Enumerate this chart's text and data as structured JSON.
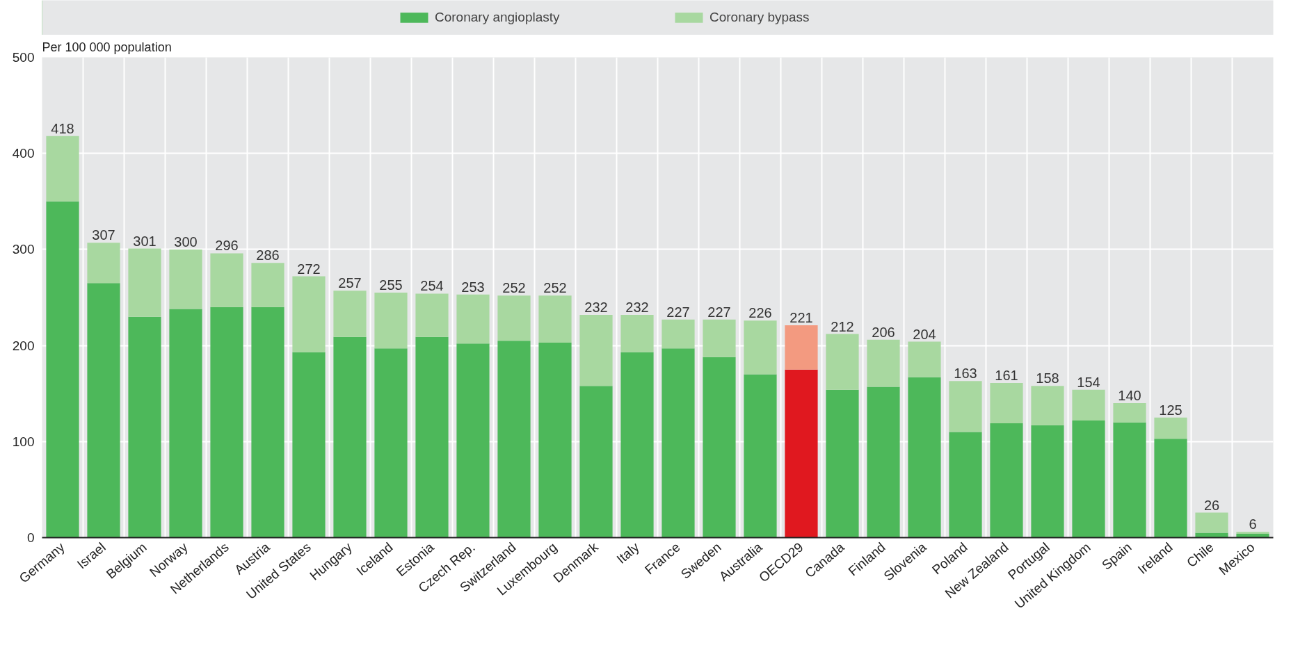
{
  "chart_data": {
    "type": "bar",
    "stacked": true,
    "ylabel": "Per 100 000 population",
    "categories": [
      "Germany",
      "Israel",
      "Belgium",
      "Norway",
      "Netherlands",
      "Austria",
      "United States",
      "Hungary",
      "Iceland",
      "Estonia",
      "Czech Rep.",
      "Switzerland",
      "Luxembourg",
      "Denmark",
      "Italy",
      "France",
      "Sweden",
      "Australia",
      "OECD29",
      "Canada",
      "Finland",
      "Slovenia",
      "Poland",
      "New Zealand",
      "Portugal",
      "United Kingdom",
      "Spain",
      "Ireland",
      "Chile",
      "Mexico"
    ],
    "series": [
      {
        "name": "Coronary angioplasty",
        "color": "#4db85a",
        "colors": [
          "#4db85a",
          "#4db85a",
          "#4db85a",
          "#4db85a",
          "#4db85a",
          "#4db85a",
          "#4db85a",
          "#4db85a",
          "#4db85a",
          "#4db85a",
          "#4db85a",
          "#4db85a",
          "#4db85a",
          "#4db85a",
          "#4db85a",
          "#4db85a",
          "#4db85a",
          "#4db85a",
          "#e0181f",
          "#4db85a",
          "#4db85a",
          "#4db85a",
          "#4db85a",
          "#4db85a",
          "#4db85a",
          "#4db85a",
          "#4db85a",
          "#4db85a",
          "#4db85a",
          "#4db85a"
        ],
        "values": [
          350,
          265,
          230,
          238,
          240,
          240,
          193,
          209,
          197,
          209,
          202,
          205,
          203,
          158,
          193,
          197,
          188,
          170,
          175,
          154,
          157,
          167,
          110,
          119,
          117,
          122,
          120,
          103,
          5,
          4
        ]
      },
      {
        "name": "Coronary bypass",
        "color": "#a8d8a0",
        "colors": [
          "#a8d8a0",
          "#a8d8a0",
          "#a8d8a0",
          "#a8d8a0",
          "#a8d8a0",
          "#a8d8a0",
          "#a8d8a0",
          "#a8d8a0",
          "#a8d8a0",
          "#a8d8a0",
          "#a8d8a0",
          "#a8d8a0",
          "#a8d8a0",
          "#a8d8a0",
          "#a8d8a0",
          "#a8d8a0",
          "#a8d8a0",
          "#a8d8a0",
          "#f39a80",
          "#a8d8a0",
          "#a8d8a0",
          "#a8d8a0",
          "#a8d8a0",
          "#a8d8a0",
          "#a8d8a0",
          "#a8d8a0",
          "#a8d8a0",
          "#a8d8a0",
          "#a8d8a0",
          "#a8d8a0"
        ],
        "values": [
          68,
          42,
          71,
          62,
          56,
          46,
          79,
          48,
          58,
          45,
          51,
          47,
          49,
          74,
          39,
          30,
          39,
          56,
          46,
          58,
          49,
          37,
          53,
          42,
          41,
          32,
          20,
          22,
          21,
          2
        ]
      }
    ],
    "totals": [
      "418",
      "307",
      "301",
      "300",
      "296",
      "286",
      "272",
      "257",
      "255",
      "254",
      "253",
      "252",
      "252",
      "232",
      "232",
      "227",
      "227",
      "226",
      "221",
      "212",
      "206",
      "204",
      "163",
      "161",
      "158",
      "154",
      "140",
      "125",
      "26",
      "6"
    ],
    "ylim": [
      0,
      500
    ],
    "yticks": [
      0,
      100,
      200,
      300,
      400,
      500
    ],
    "grid": true,
    "legend": "top"
  }
}
